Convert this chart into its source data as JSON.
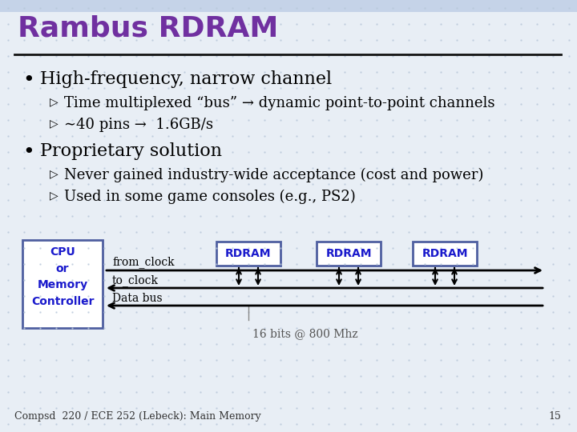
{
  "title": "Rambus RDRAM",
  "title_color": "#7030a0",
  "slide_bg": "#e8eef5",
  "header_bg": "#c5d3e8",
  "bullet1": "High-frequency, narrow channel",
  "sub1a": "Time multiplexed “bus” → dynamic point-to-point channels",
  "sub1b": "∼40 pins →  1.6GB/s",
  "bullet2": "Proprietary solution",
  "sub2a": "Never gained industry-wide acceptance (cost and power)",
  "sub2b": "Used in some game consoles (e.g., PS2)",
  "footer": "Compsd  220 / ECE 252 (Lebeck): Main Memory",
  "page_num": "15",
  "rdram_label": "RDRAM",
  "rdram_box_color": "#4f5fa0",
  "rdram_text_color": "#1a1acc",
  "cpu_label": "CPU\nor\nMemory\nController",
  "cpu_box_color": "#4f5fa0",
  "cpu_text_color": "#1a1acc",
  "from_clock": "from_clock",
  "to_clock": "to_clock",
  "data_bus": "Data bus",
  "freq_label": "16 bits @ 800 Mhz",
  "line_color": "#000000",
  "text_color": "#000000",
  "grid_color": "#b8c8da"
}
